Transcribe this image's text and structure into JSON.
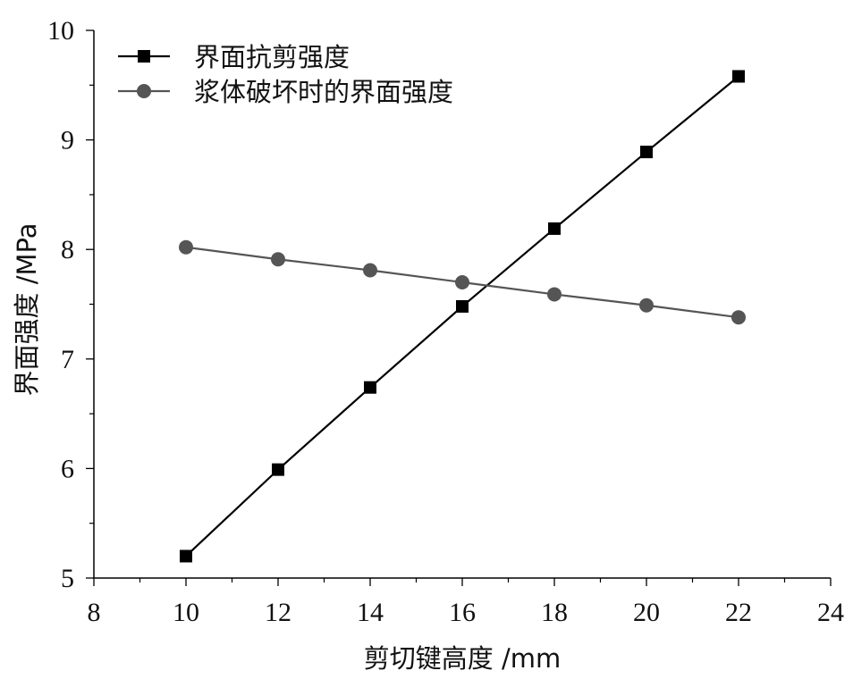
{
  "chart_data": {
    "type": "line",
    "xlabel": "剪切键高度 /mm",
    "ylabel": "界面强度 /MPa",
    "xlim": [
      8,
      24
    ],
    "ylim": [
      5,
      10
    ],
    "xticks": [
      "8",
      "10",
      "12",
      "14",
      "16",
      "18",
      "20",
      "22",
      "24"
    ],
    "yticks": [
      "5",
      "6",
      "7",
      "8",
      "9",
      "10"
    ],
    "x": [
      10,
      12,
      14,
      16,
      18,
      20,
      22
    ],
    "grid": false,
    "legend_position": "top-left",
    "series": [
      {
        "name": "界面抗剪强度",
        "marker": "square",
        "color": "#000000",
        "values": [
          5.2,
          5.99,
          6.74,
          7.48,
          8.19,
          8.89,
          9.58
        ]
      },
      {
        "name": "浆体破坏时的界面强度",
        "marker": "circle",
        "color": "#555555",
        "values": [
          8.02,
          7.91,
          7.81,
          7.7,
          7.59,
          7.49,
          7.38
        ]
      }
    ]
  }
}
